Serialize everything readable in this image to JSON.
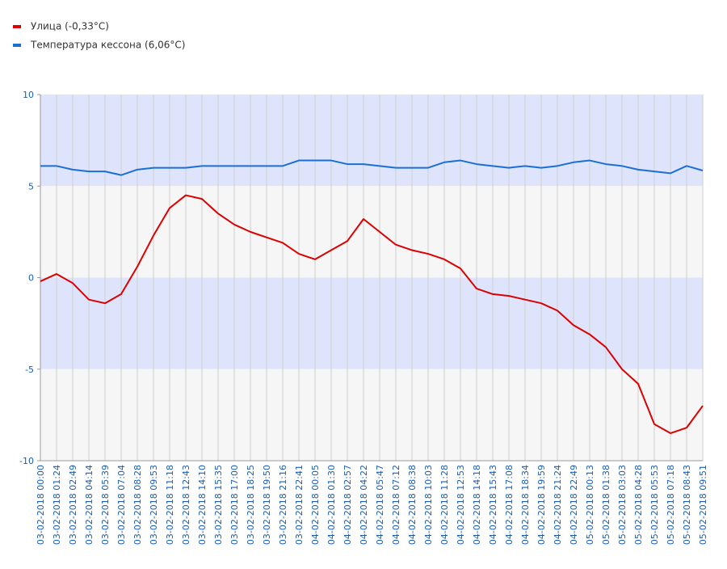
{
  "chart_data": {
    "type": "line",
    "categories": [
      "03-02-2018 00:00",
      "03-02-2018 01:24",
      "03-02-2018 02:49",
      "03-02-2018 04:14",
      "03-02-2018 05:39",
      "03-02-2018 07:04",
      "03-02-2018 08:28",
      "03-02-2018 09:53",
      "03-02-2018 11:18",
      "03-02-2018 12:43",
      "03-02-2018 14:10",
      "03-02-2018 15:35",
      "03-02-2018 17:00",
      "03-02-2018 18:25",
      "03-02-2018 19:50",
      "03-02-2018 21:16",
      "03-02-2018 22:41",
      "04-02-2018 00:05",
      "04-02-2018 01:30",
      "04-02-2018 02:57",
      "04-02-2018 04:22",
      "04-02-2018 05:47",
      "04-02-2018 07:12",
      "04-02-2018 08:38",
      "04-02-2018 10:03",
      "04-02-2018 11:28",
      "04-02-2018 12:53",
      "04-02-2018 14:18",
      "04-02-2018 15:43",
      "04-02-2018 17:08",
      "04-02-2018 18:34",
      "04-02-2018 19:59",
      "04-02-2018 21:24",
      "04-02-2018 22:49",
      "05-02-2018 00:13",
      "05-02-2018 01:38",
      "05-02-2018 03:03",
      "05-02-2018 04:28",
      "05-02-2018 05:53",
      "05-02-2018 07:18",
      "05-02-2018 08:43",
      "05-02-2018 09:51"
    ],
    "series": [
      {
        "name": "Улица (-0,33°C)",
        "color": "#dd0000",
        "values": [
          -0.2,
          0.2,
          -0.3,
          -1.2,
          -1.4,
          -0.9,
          0.6,
          2.3,
          3.8,
          4.5,
          4.3,
          3.5,
          2.9,
          2.5,
          2.2,
          1.9,
          1.3,
          1.0,
          1.5,
          2.0,
          3.2,
          2.5,
          1.8,
          1.5,
          1.3,
          1.0,
          0.5,
          -0.6,
          -0.9,
          -1.0,
          -1.2,
          -1.4,
          -1.8,
          -2.6,
          -3.1,
          -3.8,
          -5.0,
          -5.8,
          -8.0,
          -8.5,
          -8.2,
          -7.0
        ]
      },
      {
        "name": "Температура кессона (6,06°C)",
        "color": "#1a6fd6",
        "values": [
          6.1,
          6.1,
          5.9,
          5.8,
          5.8,
          5.6,
          5.9,
          6.0,
          6.0,
          6.0,
          6.1,
          6.1,
          6.1,
          6.1,
          6.1,
          6.1,
          6.4,
          6.4,
          6.4,
          6.2,
          6.2,
          6.1,
          6.0,
          6.0,
          6.0,
          6.3,
          6.4,
          6.2,
          6.1,
          6.0,
          6.1,
          6.0,
          6.1,
          6.3,
          6.4,
          6.2,
          6.1,
          5.9,
          5.8,
          5.7,
          6.1,
          5.85
        ]
      }
    ],
    "ylim": [
      -10,
      10
    ],
    "yticks": [
      -10,
      -5,
      0,
      5,
      10
    ],
    "grid": true,
    "legend": "top-left",
    "band_colors": [
      "#dde4fb",
      "#f6f6f6"
    ]
  }
}
